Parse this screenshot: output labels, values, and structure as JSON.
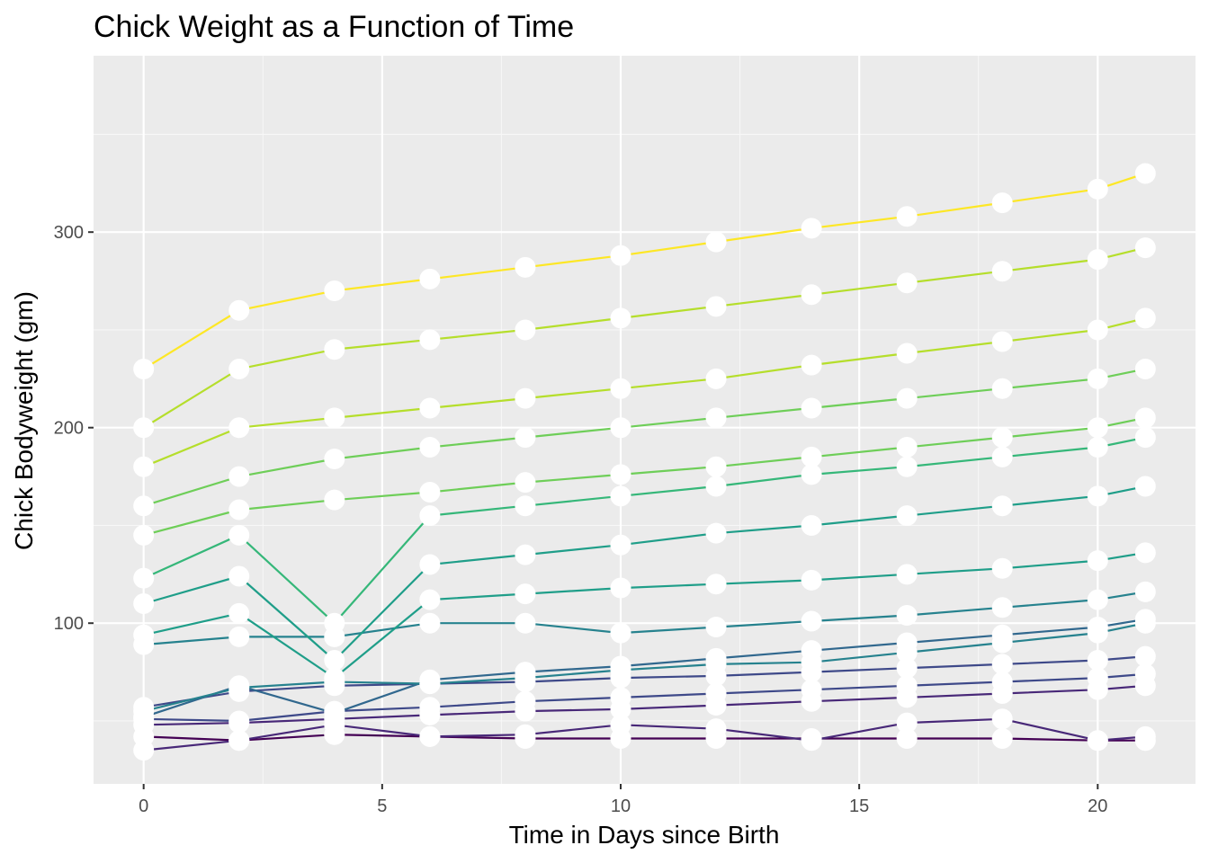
{
  "chart_data": {
    "type": "line",
    "title": "Chick Weight as a Function of Time",
    "xlabel": "Time in Days since Birth",
    "ylabel": "Chick Bodyweight (gm)",
    "xlim": [
      -1.05,
      22.05
    ],
    "ylim": [
      17.8,
      390.2
    ],
    "x_ticks": [
      0,
      5,
      10,
      15,
      20
    ],
    "x_minor_ticks": [
      2.5,
      7.5,
      12.5,
      17.5
    ],
    "y_ticks": [
      100,
      200,
      300
    ],
    "y_minor_ticks": [
      50,
      150,
      250,
      350
    ],
    "grid": true,
    "legend": "none",
    "colors": {
      "panel_background": "#ebebeb",
      "grid_major": "#ffffff",
      "grid_minor": "#f7f7f7",
      "point_fill": "#ffffff",
      "palette": [
        "#440154",
        "#482878",
        "#3e4989",
        "#31688e",
        "#26828e",
        "#1f9e89",
        "#35b779",
        "#6ece58",
        "#b5de2b",
        "#fde725"
      ]
    },
    "times": [
      0,
      2,
      4,
      6,
      8,
      10,
      12,
      14,
      16,
      18,
      20,
      21
    ],
    "series": [
      {
        "values": [
          42,
          40,
          43,
          42,
          41,
          41,
          41,
          41,
          41,
          41,
          40,
          40
        ]
      },
      {
        "values": [
          35,
          40,
          48,
          42,
          43,
          48,
          46,
          40,
          49,
          51,
          40,
          42
        ]
      },
      {
        "values": [
          48,
          49,
          51,
          53,
          55,
          56,
          58,
          60,
          62,
          64,
          66,
          68
        ]
      },
      {
        "values": [
          51,
          50,
          55,
          57,
          60,
          62,
          64,
          66,
          68,
          70,
          72,
          74
        ]
      },
      {
        "values": [
          57,
          65,
          68,
          69,
          70,
          72,
          73,
          75,
          77,
          79,
          81,
          83
        ]
      },
      {
        "values": [
          52,
          68,
          54,
          71,
          75,
          78,
          82,
          86,
          90,
          94,
          98,
          102
        ]
      },
      {
        "values": [
          55,
          67,
          70,
          69,
          72,
          76,
          79,
          80,
          85,
          90,
          95,
          100
        ]
      },
      {
        "values": [
          89,
          93,
          93,
          100,
          100,
          95,
          98,
          101,
          104,
          108,
          112,
          116
        ]
      },
      {
        "values": [
          94,
          105,
          72,
          112,
          115,
          118,
          120,
          122,
          125,
          128,
          132,
          136
        ]
      },
      {
        "values": [
          110,
          124,
          81,
          130,
          135,
          140,
          146,
          150,
          155,
          160,
          165,
          170
        ]
      },
      {
        "values": [
          123,
          145,
          100,
          155,
          160,
          165,
          170,
          176,
          180,
          185,
          190,
          195
        ]
      },
      {
        "values": [
          145,
          158,
          163,
          167,
          172,
          176,
          180,
          185,
          190,
          195,
          200,
          205
        ]
      },
      {
        "values": [
          160,
          175,
          184,
          190,
          195,
          200,
          205,
          210,
          215,
          220,
          225,
          230
        ]
      },
      {
        "values": [
          180,
          200,
          205,
          210,
          215,
          220,
          225,
          232,
          238,
          244,
          250,
          256
        ]
      },
      {
        "values": [
          200,
          230,
          240,
          245,
          250,
          256,
          262,
          268,
          274,
          280,
          286,
          292
        ]
      },
      {
        "values": [
          230,
          260,
          270,
          276,
          282,
          288,
          295,
          302,
          308,
          315,
          322,
          330
        ]
      }
    ]
  }
}
